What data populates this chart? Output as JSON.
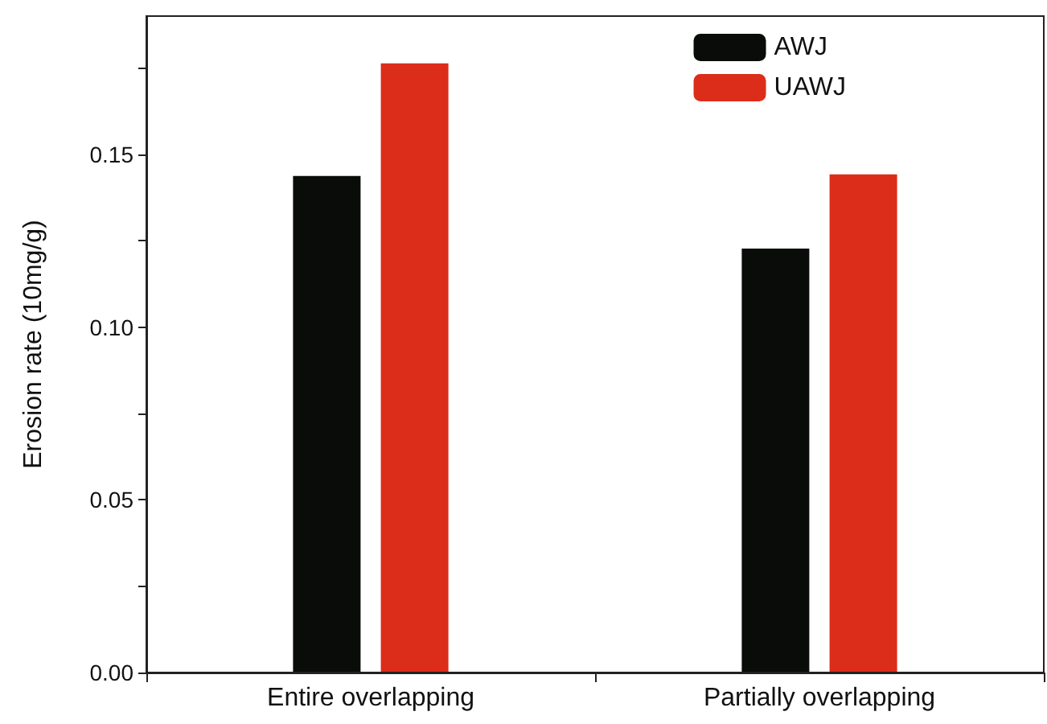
{
  "chart_data": {
    "type": "bar",
    "ylabel": "Erosion rate (10mg/g)",
    "categories": [
      "Entire overlapping",
      "Partially overlapping"
    ],
    "series": [
      {
        "name": "AWJ",
        "color": "#0a0c0a",
        "values": [
          0.1437,
          0.1227
        ]
      },
      {
        "name": "UAWJ",
        "color": "#dc2c1a",
        "values": [
          0.1763,
          0.1442
        ]
      }
    ],
    "ylim": [
      0,
      0.19
    ],
    "yticks": [
      "0.00",
      {
        "value": 0.025,
        "label": null
      },
      {
        "value": 0.05,
        "label": "0.05"
      },
      {
        "value": 0.075,
        "label": null
      },
      {
        "value": 0.1,
        "label": "0.10"
      },
      {
        "value": 0.125,
        "label": null
      },
      {
        "value": 0.15,
        "label": "0.15"
      },
      {
        "value": 0.175,
        "label": null
      }
    ],
    "grid": false,
    "legend": "top right"
  }
}
